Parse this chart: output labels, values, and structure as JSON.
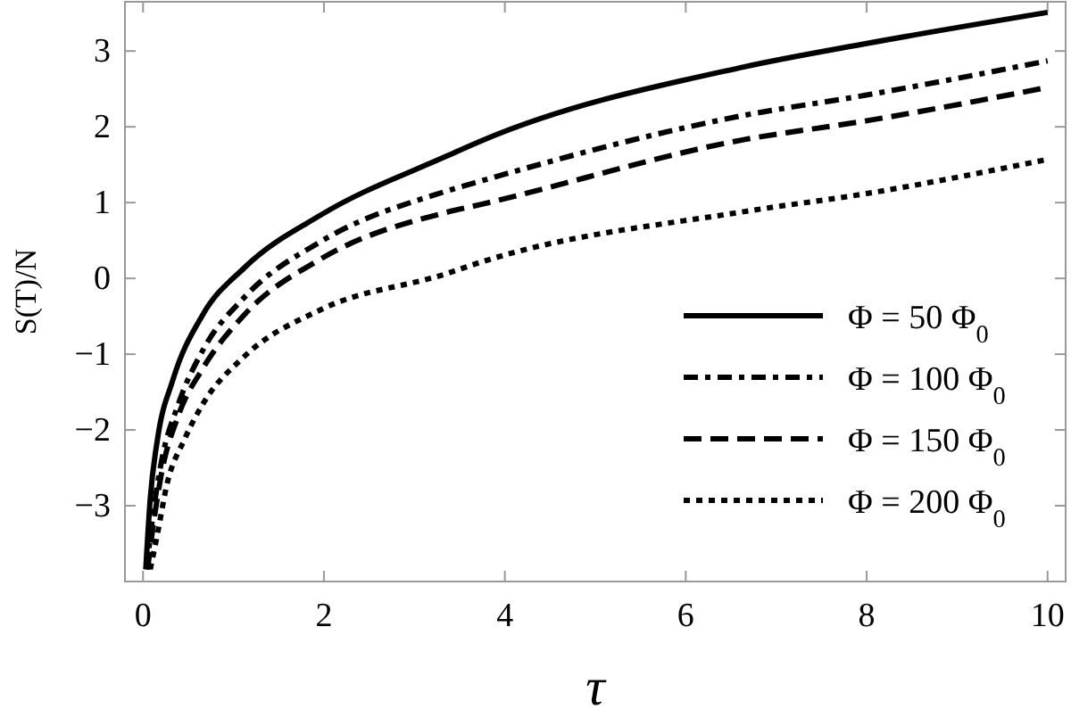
{
  "chart_data": {
    "type": "line",
    "xlabel": "τ",
    "ylabel": "S(T)/N",
    "xlim": [
      -0.2,
      10.2
    ],
    "ylim": [
      -4,
      3.65
    ],
    "xticks": [
      0,
      2,
      4,
      6,
      8,
      10
    ],
    "yticks": [
      -3,
      -2,
      -1,
      0,
      1,
      2,
      3
    ],
    "grid": false,
    "legend": "bottom right",
    "series": [
      {
        "name": "Φ = 50 Φ$_{0}$",
        "color": "#000000",
        "line_style": "solid",
        "x": [
          0.03,
          0.08,
          0.16,
          0.33,
          0.66,
          1.12,
          1.97,
          3.35,
          3.75,
          6.64,
          8,
          10
        ],
        "values": [
          -3.84,
          -2.9,
          -2.12,
          -1.34,
          -0.48,
          0.14,
          0.84,
          1.61,
          1.82,
          2.79,
          3.1,
          3.51
        ]
      },
      {
        "name": "Φ = 100 Φ$_{0}$",
        "color": "#000000",
        "line_style": "dashdot",
        "x": [
          0.04,
          0.1,
          0.2,
          0.39,
          0.66,
          1.12,
          1.97,
          3.35,
          3.75,
          6.64,
          8,
          10
        ],
        "values": [
          -3.84,
          -3.21,
          -2.44,
          -1.66,
          -0.95,
          -0.25,
          0.49,
          1.15,
          1.29,
          2.15,
          2.42,
          2.87
        ]
      },
      {
        "name": "Φ = 150 Φ$_{0}$",
        "color": "#000000",
        "line_style": "dashed",
        "x": [
          0.05,
          0.1,
          0.2,
          0.39,
          0.66,
          1.12,
          1.97,
          3.35,
          3.75,
          6.64,
          8,
          10
        ],
        "values": [
          -3.84,
          -3.37,
          -2.6,
          -1.81,
          -1.19,
          -0.48,
          0.26,
          0.87,
          0.98,
          1.83,
          2.08,
          2.52
        ]
      },
      {
        "name": "Φ = 200 Φ$_{0}$",
        "color": "#000000",
        "line_style": "dotted",
        "x": [
          0.08,
          0.16,
          0.26,
          0.46,
          0.66,
          1.12,
          1.97,
          3.35,
          3.75,
          6.64,
          8,
          10
        ],
        "values": [
          -3.84,
          -3.37,
          -2.74,
          -2.12,
          -1.66,
          -1.03,
          -0.41,
          0.06,
          0.22,
          0.88,
          1.12,
          1.57
        ]
      }
    ]
  }
}
